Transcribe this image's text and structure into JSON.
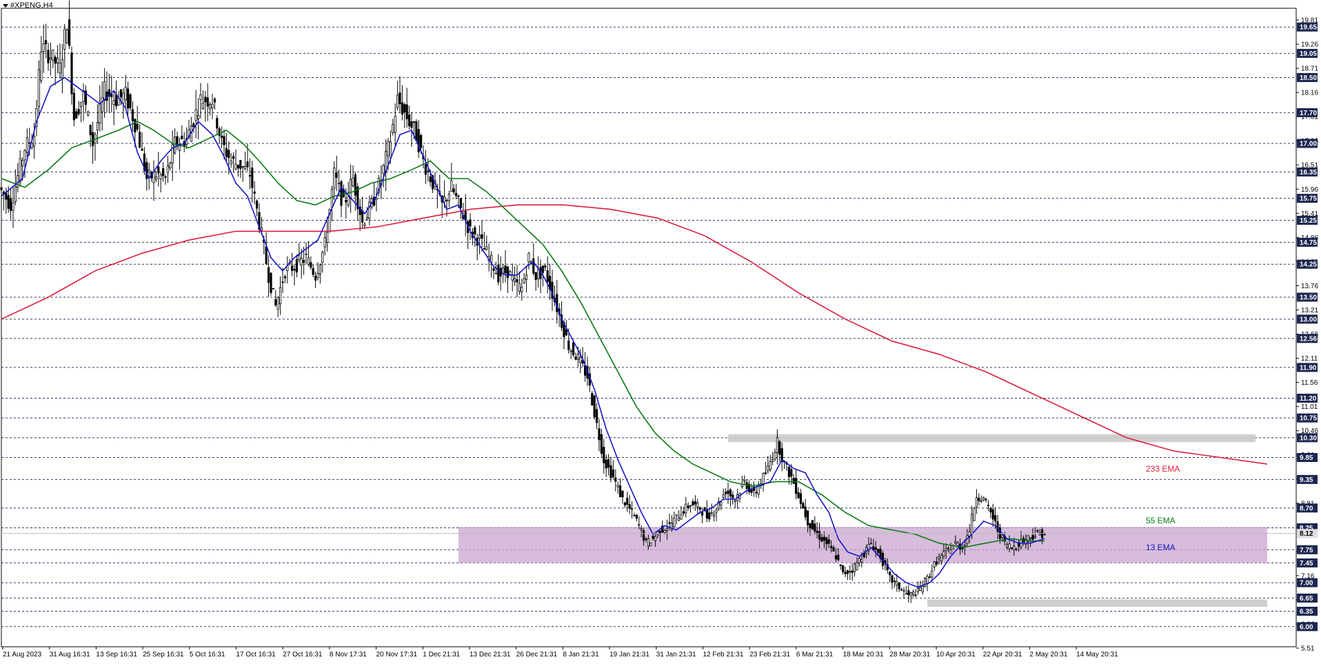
{
  "window": {
    "symbol_label": "#XPENG,H4"
  },
  "colors": {
    "background": "#ffffff",
    "grid": "#2f3a66",
    "candle": "#000000",
    "ema13": "#1515c8",
    "ema55": "#0a7a12",
    "ema233": "#dc1c3c",
    "support_zone": "#caa6cf",
    "resistance_zone": "#c8c8c8",
    "price_tag": "#1c2650",
    "current_tag": "#dcdcdc"
  },
  "chart_data": {
    "type": "candlestick",
    "title": "#XPENG,H4",
    "ylim": [
      5.51,
      19.92
    ],
    "y_labels": [
      "19.81",
      "19.26",
      "18.71",
      "18.16",
      "17.61",
      "17.06",
      "16.51",
      "15.96",
      "15.41",
      "14.86",
      "14.31",
      "13.76",
      "13.21",
      "12.66",
      "12.11",
      "11.56",
      "11.01",
      "10.46",
      "9.91",
      "9.36",
      "8.81",
      "8.26",
      "7.71",
      "7.16",
      "6.61",
      "6.06",
      "5.51"
    ],
    "price_levels": [
      19.65,
      19.05,
      18.5,
      17.7,
      17.0,
      16.35,
      15.75,
      15.25,
      14.75,
      14.25,
      13.5,
      13.0,
      12.56,
      11.9,
      11.2,
      10.75,
      10.3,
      9.85,
      9.35,
      8.7,
      8.25,
      7.75,
      7.45,
      7.0,
      6.65,
      6.35,
      6.0
    ],
    "current_price": "8.12",
    "x_labels": [
      "21 Aug 2023",
      "31 Aug 16:31",
      "13 Sep 16:31",
      "25 Sep 16:31",
      "5 Oct 16:31",
      "17 Oct 16:31",
      "27 Oct 16:31",
      "8 Nov 17:31",
      "20 Nov 17:31",
      "1 Dec 21:31",
      "13 Dec 21:31",
      "26 Dec 21:31",
      "8 Jan 21:31",
      "19 Jan 21:31",
      "31 Jan 21:31",
      "12 Feb 21:31",
      "23 Feb 21:31",
      "6 Mar 21:31",
      "18 Mar 20:31",
      "28 Mar 20:31",
      "10 Apr 20:31",
      "22 Apr 20:31",
      "2 May 20:31",
      "14 May 20:31"
    ],
    "price_path": [
      [
        0,
        16.0
      ],
      [
        10,
        15.6
      ],
      [
        22,
        16.9
      ],
      [
        30,
        17.2
      ],
      [
        36,
        19.2
      ],
      [
        44,
        19.0
      ],
      [
        52,
        18.7
      ],
      [
        58,
        19.8
      ],
      [
        64,
        17.6
      ],
      [
        72,
        18.1
      ],
      [
        80,
        17.0
      ],
      [
        90,
        18.2
      ],
      [
        100,
        18.0
      ],
      [
        108,
        18.1
      ],
      [
        118,
        17.3
      ],
      [
        126,
        16.2
      ],
      [
        134,
        16.3
      ],
      [
        142,
        16.2
      ],
      [
        150,
        17.0
      ],
      [
        160,
        17.1
      ],
      [
        172,
        18.0
      ],
      [
        182,
        18.0
      ],
      [
        190,
        17.0
      ],
      [
        198,
        16.6
      ],
      [
        206,
        16.5
      ],
      [
        214,
        16.3
      ],
      [
        222,
        15.2
      ],
      [
        230,
        14.0
      ],
      [
        236,
        13.3
      ],
      [
        244,
        14.1
      ],
      [
        252,
        14.2
      ],
      [
        262,
        14.4
      ],
      [
        270,
        14.0
      ],
      [
        278,
        14.7
      ],
      [
        286,
        16.3
      ],
      [
        294,
        15.6
      ],
      [
        302,
        16.2
      ],
      [
        310,
        15.2
      ],
      [
        318,
        15.6
      ],
      [
        326,
        16.2
      ],
      [
        334,
        17.1
      ],
      [
        340,
        18.0
      ],
      [
        348,
        17.6
      ],
      [
        356,
        17.2
      ],
      [
        362,
        16.6
      ],
      [
        370,
        16.1
      ],
      [
        378,
        15.6
      ],
      [
        386,
        16.0
      ],
      [
        394,
        15.5
      ],
      [
        402,
        15.0
      ],
      [
        410,
        14.8
      ],
      [
        418,
        14.4
      ],
      [
        426,
        14.0
      ],
      [
        434,
        14.1
      ],
      [
        440,
        13.8
      ],
      [
        446,
        13.7
      ],
      [
        452,
        14.4
      ],
      [
        458,
        14.0
      ],
      [
        466,
        14.1
      ],
      [
        472,
        13.6
      ],
      [
        478,
        13.1
      ],
      [
        486,
        12.4
      ],
      [
        494,
        12.1
      ],
      [
        502,
        11.7
      ],
      [
        510,
        10.6
      ],
      [
        516,
        9.8
      ],
      [
        524,
        9.4
      ],
      [
        532,
        8.9
      ],
      [
        540,
        8.6
      ],
      [
        546,
        8.3
      ],
      [
        552,
        7.9
      ],
      [
        558,
        8.0
      ],
      [
        564,
        8.2
      ],
      [
        572,
        8.3
      ],
      [
        582,
        8.6
      ],
      [
        590,
        8.8
      ],
      [
        598,
        8.7
      ],
      [
        604,
        8.5
      ],
      [
        612,
        8.7
      ],
      [
        620,
        9.1
      ],
      [
        628,
        8.9
      ],
      [
        636,
        9.3
      ],
      [
        644,
        9.0
      ],
      [
        650,
        9.3
      ],
      [
        656,
        9.6
      ],
      [
        664,
        10.2
      ],
      [
        670,
        9.7
      ],
      [
        676,
        9.4
      ],
      [
        682,
        9.0
      ],
      [
        690,
        8.4
      ],
      [
        698,
        8.1
      ],
      [
        706,
        7.9
      ],
      [
        714,
        7.6
      ],
      [
        720,
        7.2
      ],
      [
        728,
        7.3
      ],
      [
        736,
        7.6
      ],
      [
        744,
        7.9
      ],
      [
        752,
        7.6
      ],
      [
        760,
        7.1
      ],
      [
        768,
        6.9
      ],
      [
        776,
        6.7
      ],
      [
        784,
        6.8
      ],
      [
        792,
        7.1
      ],
      [
        800,
        7.5
      ],
      [
        808,
        7.7
      ],
      [
        816,
        7.9
      ],
      [
        822,
        7.8
      ],
      [
        828,
        8.2
      ],
      [
        834,
        9.0
      ],
      [
        840,
        8.9
      ],
      [
        846,
        8.6
      ],
      [
        852,
        8.2
      ],
      [
        858,
        7.9
      ],
      [
        864,
        7.8
      ],
      [
        870,
        7.9
      ],
      [
        876,
        8.0
      ],
      [
        884,
        8.1
      ],
      [
        890,
        8.12
      ]
    ],
    "ema13_path": [
      [
        0,
        15.8
      ],
      [
        18,
        16.2
      ],
      [
        30,
        17.5
      ],
      [
        42,
        18.3
      ],
      [
        54,
        18.5
      ],
      [
        64,
        18.3
      ],
      [
        74,
        18.1
      ],
      [
        84,
        17.9
      ],
      [
        96,
        18.2
      ],
      [
        106,
        17.8
      ],
      [
        116,
        16.8
      ],
      [
        126,
        16.2
      ],
      [
        136,
        16.6
      ],
      [
        146,
        16.9
      ],
      [
        156,
        17.0
      ],
      [
        168,
        17.5
      ],
      [
        180,
        17.2
      ],
      [
        190,
        16.7
      ],
      [
        200,
        16.1
      ],
      [
        210,
        15.8
      ],
      [
        220,
        15.1
      ],
      [
        230,
        14.4
      ],
      [
        240,
        14.1
      ],
      [
        250,
        14.4
      ],
      [
        260,
        14.6
      ],
      [
        270,
        14.8
      ],
      [
        280,
        15.4
      ],
      [
        290,
        16.0
      ],
      [
        300,
        15.7
      ],
      [
        310,
        15.4
      ],
      [
        320,
        15.8
      ],
      [
        330,
        16.5
      ],
      [
        340,
        17.2
      ],
      [
        350,
        17.3
      ],
      [
        360,
        16.7
      ],
      [
        370,
        16.1
      ],
      [
        380,
        15.5
      ],
      [
        390,
        15.6
      ],
      [
        400,
        15.0
      ],
      [
        410,
        14.6
      ],
      [
        420,
        14.2
      ],
      [
        430,
        14.0
      ],
      [
        440,
        14.0
      ],
      [
        448,
        14.2
      ],
      [
        454,
        14.3
      ],
      [
        462,
        14.0
      ],
      [
        470,
        13.6
      ],
      [
        478,
        13.0
      ],
      [
        486,
        12.6
      ],
      [
        496,
        12.1
      ],
      [
        506,
        11.4
      ],
      [
        516,
        10.5
      ],
      [
        526,
        9.8
      ],
      [
        536,
        9.2
      ],
      [
        546,
        8.6
      ],
      [
        556,
        8.1
      ],
      [
        566,
        8.3
      ],
      [
        576,
        8.2
      ],
      [
        586,
        8.4
      ],
      [
        596,
        8.6
      ],
      [
        606,
        8.7
      ],
      [
        616,
        8.9
      ],
      [
        626,
        8.9
      ],
      [
        636,
        9.1
      ],
      [
        646,
        9.2
      ],
      [
        656,
        9.3
      ],
      [
        666,
        9.8
      ],
      [
        676,
        9.6
      ],
      [
        686,
        9.5
      ],
      [
        696,
        9.0
      ],
      [
        706,
        8.6
      ],
      [
        714,
        8.0
      ],
      [
        722,
        7.7
      ],
      [
        732,
        7.6
      ],
      [
        742,
        7.8
      ],
      [
        752,
        7.5
      ],
      [
        762,
        7.2
      ],
      [
        772,
        7.0
      ],
      [
        782,
        6.9
      ],
      [
        792,
        7.0
      ],
      [
        800,
        7.2
      ],
      [
        810,
        7.6
      ],
      [
        820,
        7.9
      ],
      [
        828,
        8.1
      ],
      [
        838,
        8.4
      ],
      [
        848,
        8.3
      ],
      [
        858,
        8.0
      ],
      [
        868,
        7.9
      ],
      [
        878,
        7.9
      ],
      [
        890,
        8.0
      ]
    ],
    "ema55_path": [
      [
        0,
        16.2
      ],
      [
        20,
        16.0
      ],
      [
        40,
        16.4
      ],
      [
        60,
        16.9
      ],
      [
        80,
        17.1
      ],
      [
        100,
        17.3
      ],
      [
        116,
        17.5
      ],
      [
        130,
        17.3
      ],
      [
        146,
        17.0
      ],
      [
        160,
        16.9
      ],
      [
        176,
        17.1
      ],
      [
        192,
        17.3
      ],
      [
        206,
        17.0
      ],
      [
        220,
        16.6
      ],
      [
        236,
        16.1
      ],
      [
        252,
        15.7
      ],
      [
        268,
        15.6
      ],
      [
        284,
        15.8
      ],
      [
        300,
        15.9
      ],
      [
        316,
        16.1
      ],
      [
        332,
        16.2
      ],
      [
        350,
        16.4
      ],
      [
        366,
        16.6
      ],
      [
        382,
        16.2
      ],
      [
        398,
        16.2
      ],
      [
        414,
        15.9
      ],
      [
        430,
        15.5
      ],
      [
        446,
        15.1
      ],
      [
        462,
        14.7
      ],
      [
        478,
        14.1
      ],
      [
        494,
        13.4
      ],
      [
        510,
        12.6
      ],
      [
        526,
        11.8
      ],
      [
        542,
        11.0
      ],
      [
        558,
        10.4
      ],
      [
        574,
        10.0
      ],
      [
        590,
        9.7
      ],
      [
        606,
        9.5
      ],
      [
        622,
        9.3
      ],
      [
        640,
        9.2
      ],
      [
        660,
        9.3
      ],
      [
        680,
        9.3
      ],
      [
        700,
        9.0
      ],
      [
        720,
        8.6
      ],
      [
        740,
        8.3
      ],
      [
        760,
        8.2
      ],
      [
        780,
        8.1
      ],
      [
        800,
        7.9
      ],
      [
        820,
        7.8
      ],
      [
        840,
        7.9
      ],
      [
        860,
        8.0
      ],
      [
        880,
        7.95
      ],
      [
        890,
        7.95
      ]
    ],
    "ema233_path": [
      [
        0,
        13.0
      ],
      [
        40,
        13.5
      ],
      [
        80,
        14.1
      ],
      [
        120,
        14.5
      ],
      [
        160,
        14.8
      ],
      [
        200,
        15.0
      ],
      [
        240,
        15.0
      ],
      [
        280,
        15.0
      ],
      [
        320,
        15.1
      ],
      [
        360,
        15.3
      ],
      [
        400,
        15.5
      ],
      [
        440,
        15.6
      ],
      [
        480,
        15.6
      ],
      [
        520,
        15.5
      ],
      [
        560,
        15.3
      ],
      [
        600,
        14.9
      ],
      [
        640,
        14.3
      ],
      [
        680,
        13.6
      ],
      [
        720,
        13.0
      ],
      [
        760,
        12.5
      ],
      [
        800,
        12.2
      ],
      [
        840,
        11.8
      ],
      [
        880,
        11.3
      ],
      [
        920,
        10.8
      ],
      [
        960,
        10.3
      ],
      [
        1000,
        10.0
      ],
      [
        1040,
        9.85
      ],
      [
        1080,
        9.7
      ]
    ],
    "zones": [
      {
        "kind": "resistance",
        "from": 10.2,
        "to": 10.38,
        "x0": 620,
        "x1": 1070
      },
      {
        "kind": "support",
        "from": 7.45,
        "to": 8.27,
        "x0": 390,
        "x1": 1080
      },
      {
        "kind": "support-low",
        "from": 6.45,
        "to": 6.62,
        "x0": 790,
        "x1": 1080
      }
    ],
    "ema_labels": [
      {
        "text": "233 EMA",
        "series": "ema233",
        "price": 9.58
      },
      {
        "text": "55 EMA",
        "series": "ema55",
        "price": 8.4
      },
      {
        "text": "13 EMA",
        "series": "ema13",
        "price": 7.78
      }
    ]
  }
}
